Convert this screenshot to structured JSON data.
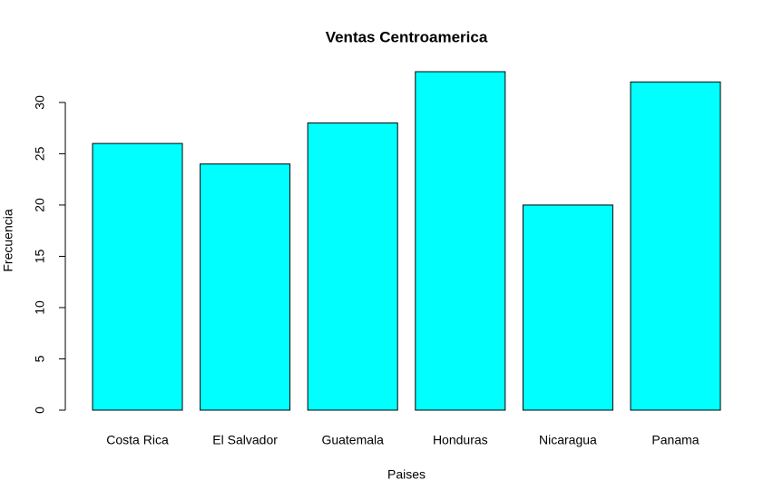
{
  "chart_data": {
    "type": "bar",
    "title": "Ventas Centroamerica",
    "x_label": "Paises",
    "y_label": "Frecuencia",
    "categories": [
      "Costa Rica",
      "El Salvador",
      "Guatemala",
      "Honduras",
      "Nicaragua",
      "Panama"
    ],
    "values": [
      26,
      24,
      28,
      33,
      20,
      32
    ],
    "color": "#00ffff",
    "ylim": [
      0,
      33
    ],
    "yticks": [
      0,
      5,
      10,
      15,
      20,
      25,
      30
    ],
    "grid": false
  }
}
